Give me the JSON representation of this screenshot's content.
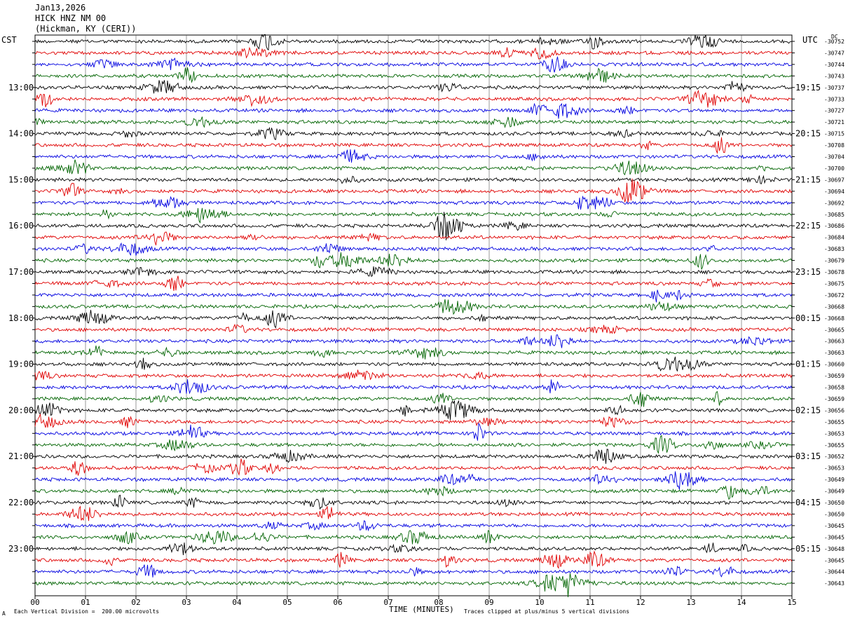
{
  "header": {
    "date": "Jan13,2026",
    "station": "HICK HNZ NM 00",
    "location": "(Hickman, KY (CERI))"
  },
  "left_timezone": "CST",
  "right_timezone": "UTC",
  "dc_label": "DC",
  "footer": {
    "scale_note": "Each Vertical Division =  200.00 microvolts",
    "clip_note": "Traces clipped at plus/minus 5 vertical divisions",
    "corner_mark": "A"
  },
  "colors": {
    "trace_cycle": [
      "#000000",
      "#e00000",
      "#0000e0",
      "#006400"
    ]
  },
  "chart_data": {
    "type": "line",
    "xlabel": "TIME (MINUTES)",
    "xlim": [
      0,
      15
    ],
    "x_ticks": [
      "00",
      "01",
      "02",
      "03",
      "04",
      "05",
      "06",
      "07",
      "08",
      "09",
      "10",
      "11",
      "12",
      "13",
      "14",
      "15"
    ],
    "trace_minutes": 15,
    "row_count": 48,
    "left_hour_labels": [
      "13:00",
      "14:00",
      "15:00",
      "16:00",
      "17:00",
      "18:00",
      "19:00",
      "20:00",
      "21:00",
      "22:00",
      "23:00"
    ],
    "right_hour_labels": [
      "19:15",
      "20:15",
      "21:15",
      "22:15",
      "23:15",
      "00:15",
      "01:15",
      "02:15",
      "03:15",
      "04:15",
      "05:15"
    ],
    "hour_label_rows": [
      4,
      8,
      12,
      16,
      20,
      24,
      28,
      32,
      36,
      40,
      44
    ],
    "dc_offsets": [
      "-30752",
      "-30747",
      "-30744",
      "-30743",
      "-30737",
      "-30733",
      "-30727",
      "-30721",
      "-30715",
      "-30708",
      "-30704",
      "-30700",
      "-30697",
      "-30694",
      "-30692",
      "-30685",
      "-30686",
      "-30684",
      "-30683",
      "-30679",
      "-30678",
      "-30675",
      "-30672",
      "-30668",
      "-30668",
      "-30665",
      "-30663",
      "-30663",
      "-30660",
      "-30659",
      "-30658",
      "-30659",
      "-30656",
      "-30655",
      "-30653",
      "-30655",
      "-30652",
      "-30653",
      "-30649",
      "-30649",
      "-30650",
      "-30650",
      "-30645",
      "-30645",
      "-30648",
      "-30645",
      "-30644",
      "-30643"
    ]
  }
}
